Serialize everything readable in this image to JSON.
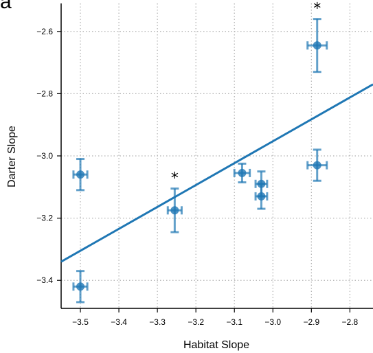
{
  "panel_label": "a",
  "colors": {
    "primary": "#1f77b4",
    "grid": "#b0b0b0",
    "axis": "#000000"
  },
  "chart_data": {
    "type": "scatter",
    "title": "",
    "xlabel": "Habitat Slope",
    "ylabel": "Darter Slope",
    "xlim": [
      -3.55,
      -2.74
    ],
    "ylim": [
      -3.49,
      -2.51
    ],
    "xticks": [
      -3.5,
      -3.4,
      -3.3,
      -3.2,
      -3.1,
      -3.0,
      -2.9,
      -2.8
    ],
    "xtick_labels": [
      "−3.5",
      "−3.4",
      "−3.3",
      "−3.2",
      "−3.1",
      "−3.0",
      "−2.9",
      "−2.8"
    ],
    "yticks": [
      -3.4,
      -3.2,
      -3.0,
      -2.8,
      -2.6
    ],
    "ytick_labels": [
      "−3.4",
      "−3.2",
      "−3.0",
      "−2.8",
      "−2.6"
    ],
    "grid": true,
    "points": [
      {
        "x": -3.5,
        "y": -3.06,
        "xerr": 0.018,
        "yerr": 0.05,
        "star": false
      },
      {
        "x": -3.5,
        "y": -3.42,
        "xerr": 0.018,
        "yerr": 0.05,
        "star": false
      },
      {
        "x": -3.255,
        "y": -3.175,
        "xerr": 0.018,
        "yerr": 0.07,
        "star": true
      },
      {
        "x": -3.08,
        "y": -3.055,
        "xerr": 0.02,
        "yerr": 0.03,
        "star": false
      },
      {
        "x": -3.03,
        "y": -3.09,
        "xerr": 0.015,
        "yerr": 0.04,
        "star": false
      },
      {
        "x": -3.03,
        "y": -3.13,
        "xerr": 0.015,
        "yerr": 0.04,
        "star": false
      },
      {
        "x": -2.885,
        "y": -2.645,
        "xerr": 0.025,
        "yerr": 0.085,
        "star": true
      },
      {
        "x": -2.885,
        "y": -3.03,
        "xerr": 0.025,
        "yerr": 0.05,
        "star": false
      }
    ],
    "star_label": "*",
    "regression": {
      "x": [
        -3.55,
        -2.74
      ],
      "y": [
        -3.34,
        -2.77
      ]
    }
  }
}
